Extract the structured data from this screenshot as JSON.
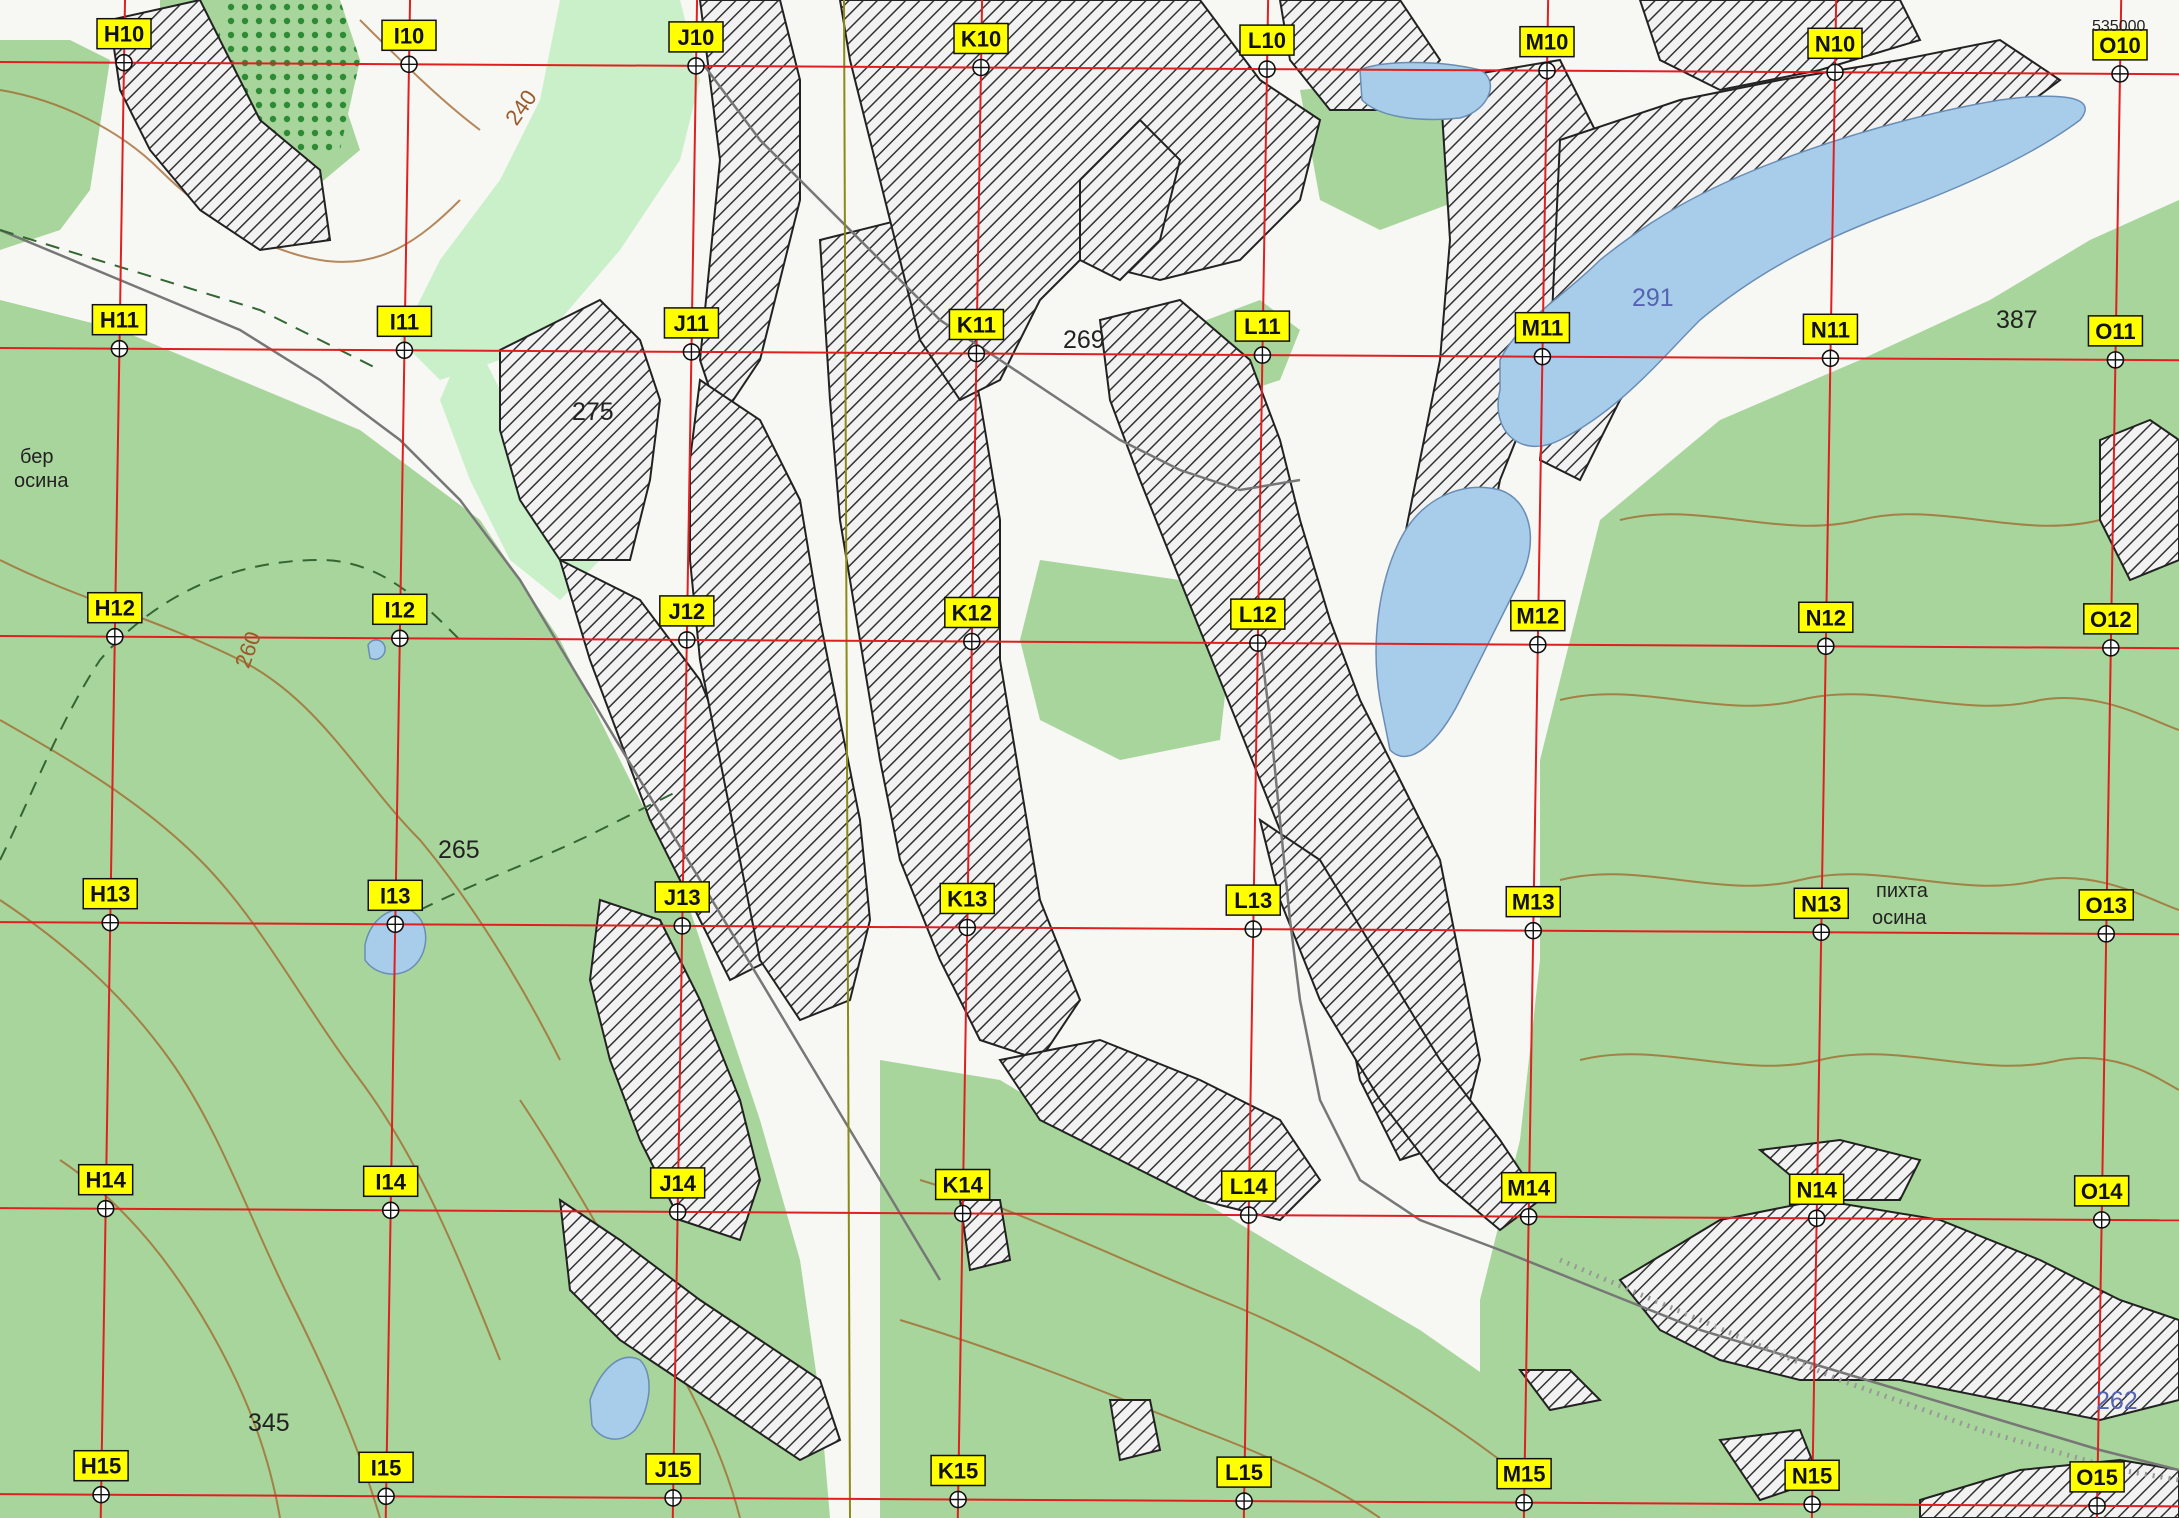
{
  "map": {
    "colors": {
      "forest": "#a8d59b",
      "open": "#f7f7f4",
      "meadow": "#c9f0c8",
      "water": "#a8cdea",
      "hatch": "#333333",
      "grid": "#e02020",
      "label_bg": "#ffff00",
      "contour": "#a0642a"
    },
    "grid": {
      "columns": [
        "H",
        "I",
        "J",
        "K",
        "L",
        "M",
        "N",
        "O"
      ],
      "rows": [
        "10",
        "11",
        "12",
        "13",
        "14",
        "15"
      ]
    },
    "cells": [
      "H10",
      "I10",
      "J10",
      "K10",
      "L10",
      "M10",
      "N10",
      "O10",
      "H11",
      "I11",
      "J11",
      "K11",
      "L11",
      "M11",
      "N11",
      "O11",
      "H12",
      "I12",
      "J12",
      "K12",
      "L12",
      "M12",
      "N12",
      "O12",
      "H13",
      "I13",
      "J13",
      "K13",
      "L13",
      "M13",
      "N13",
      "O13",
      "H14",
      "I14",
      "J14",
      "K14",
      "L14",
      "M14",
      "N14",
      "O14",
      "H15",
      "I15",
      "J15",
      "K15",
      "L15",
      "M15",
      "N15",
      "O15"
    ],
    "elevations": [
      "275",
      "269",
      "291",
      "387",
      "265",
      "345",
      "262"
    ],
    "contour_labels": [
      "240",
      "260"
    ],
    "vegetation": [
      "бер",
      "осина",
      "пихта",
      "осина"
    ],
    "coordinates": [
      "535000"
    ]
  }
}
